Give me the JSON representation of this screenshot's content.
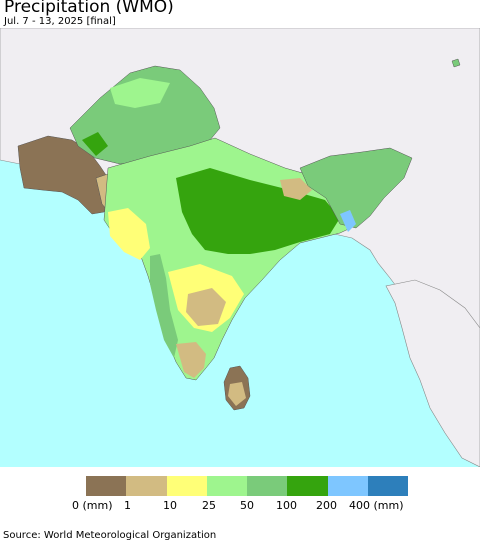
{
  "header": {
    "title": "Precipitation (WMO)",
    "subtitle": "Jul. 7 - 13, 2025 [final]"
  },
  "map": {
    "region": "South Asia",
    "colors": {
      "ocean": "#b3ffff",
      "outside_land": "#f0eef2",
      "border": "#555555"
    }
  },
  "legend": {
    "colors": [
      "#8b7355",
      "#d2bb82",
      "#ffff77",
      "#9ef58e",
      "#7acb7a",
      "#35a40e",
      "#7ec6ff",
      "#2d7fbb"
    ],
    "labels": [
      "0 (mm)",
      "1",
      "10",
      "25",
      "50",
      "100",
      "200",
      "400 (mm)"
    ]
  },
  "footer": {
    "source": "Source: World Meteorological Organization"
  }
}
